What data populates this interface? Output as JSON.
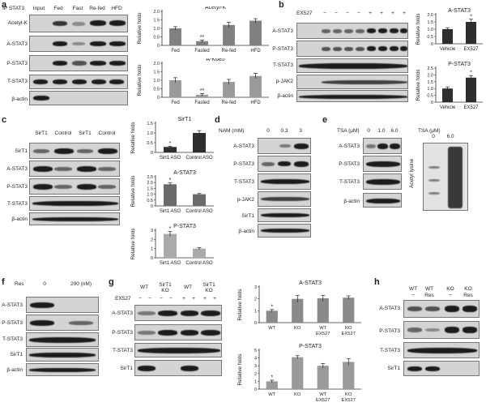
{
  "panels": {
    "a": {
      "label": "a",
      "blot_header": "IP STAT3",
      "lanes": [
        "Input",
        "Fed",
        "Fast",
        "Re-fed",
        "HFD"
      ],
      "rows": [
        "Acetyl-K",
        "A-STAT3",
        "P-STAT3",
        "T-STAT3",
        "β-actin"
      ]
    },
    "b": {
      "label": "b",
      "treatment": "EX527",
      "signs": [
        "−",
        "−",
        "−",
        "−",
        "+",
        "+",
        "+",
        "+"
      ],
      "rows": [
        "A-STAT3",
        "P-STAT3",
        "T-STAT3",
        "p-JAK2",
        "β-actin"
      ]
    },
    "c": {
      "label": "c",
      "lanes": [
        "SirT1",
        "Control",
        "SirT1",
        "Control"
      ],
      "rows": [
        "SirT1",
        "A-STAT3",
        "P-STAT3",
        "T-STAT3",
        "β-actin"
      ]
    },
    "d": {
      "label": "d",
      "header": "NAM (mM)",
      "lanes": [
        "0",
        "0.3",
        "3"
      ],
      "rows": [
        "A-STAT3",
        "P-STAT3",
        "T-STAT3",
        "p-JAK2",
        "SirT1",
        "β-actin"
      ]
    },
    "e": {
      "label": "e",
      "header": "TSA (μM)",
      "lanes": [
        "0",
        "1.0",
        "6.0"
      ],
      "rows": [
        "A-STAT3",
        "P-STAT3",
        "T-STAT3",
        "β-actin"
      ],
      "right_header": "TSA (μM)",
      "right_lanes": [
        "0",
        "6.0"
      ],
      "right_label": "Acetyl lysine"
    },
    "f": {
      "label": "f",
      "header": "Res",
      "lanes": [
        "0",
        "200 (nM)"
      ],
      "rows": [
        "A-STAT3",
        "P-STAT3",
        "T-STAT3",
        "SirT1",
        "β-actin"
      ]
    },
    "g": {
      "label": "g",
      "top_lanes": [
        "WT",
        "SirT1 KO",
        "WT",
        "SirT1 KO"
      ],
      "treatment": "EX527",
      "signs": [
        "−",
        "−",
        "−",
        "−",
        "+",
        "+",
        "+",
        "+"
      ],
      "rows": [
        "A-STAT3",
        "P-STAT3",
        "T-STAT3",
        "SirT1"
      ]
    },
    "h": {
      "label": "h",
      "top_lanes": [
        "WT",
        "WT",
        "KO",
        "KO"
      ],
      "sub_lanes": [
        "−",
        "Res",
        "−",
        "Res"
      ],
      "rows": [
        "A-STAT3",
        "P-STAT3",
        "T-STAT3",
        "SirT1"
      ]
    }
  },
  "chart_data": [
    {
      "id": "a1",
      "type": "bar",
      "title": "Acetyl-K",
      "ylabel": "Relative folds",
      "categories": [
        "Fed",
        "Fasted",
        "Re-fed",
        "HFD"
      ],
      "values": [
        1.0,
        0.25,
        1.2,
        1.45
      ],
      "errors": [
        0.1,
        0.06,
        0.15,
        0.12
      ],
      "annotations": [
        "",
        "**",
        "",
        ""
      ],
      "ylim": [
        0,
        2.0
      ],
      "yticks": [
        "0",
        "0.5",
        "1.0",
        "1.5",
        "2.0"
      ],
      "color": "#808080"
    },
    {
      "id": "a2",
      "type": "bar",
      "title": "A-K685",
      "ylabel": "Relative folds",
      "categories": [
        "Fed",
        "Fasted",
        "Re-fed",
        "HFD"
      ],
      "values": [
        1.0,
        0.15,
        0.9,
        1.25
      ],
      "errors": [
        0.15,
        0.07,
        0.15,
        0.15
      ],
      "annotations": [
        "",
        "**",
        "",
        ""
      ],
      "ylim": [
        0,
        2.0
      ],
      "yticks": [
        "0",
        "0.5",
        "1.0",
        "1.5",
        "2.0"
      ],
      "color": "#9a9a9a"
    },
    {
      "id": "b1",
      "type": "bar",
      "title": "A-STAT3",
      "ylabel": "Relative folds",
      "categories": [
        "Vehicle",
        "EX527"
      ],
      "values": [
        1.0,
        1.5
      ],
      "errors": [
        0.1,
        0.18
      ],
      "annotations": [
        "",
        "*"
      ],
      "ylim": [
        0,
        2.0
      ],
      "yticks": [
        "0",
        "0.5",
        "1.0",
        "1.5",
        "2.0"
      ],
      "color": "#2e2e2e"
    },
    {
      "id": "b2",
      "type": "bar",
      "title": "P-STAT3",
      "ylabel": "Relative folds",
      "categories": [
        "Vehicle",
        "EX527"
      ],
      "values": [
        1.0,
        1.8
      ],
      "errors": [
        0.12,
        0.15
      ],
      "annotations": [
        "",
        "*"
      ],
      "ylim": [
        0,
        2.5
      ],
      "yticks": [
        "0",
        "0.5",
        "1.0",
        "1.5",
        "2.0",
        "2.5"
      ],
      "color": "#2e2e2e"
    },
    {
      "id": "c1",
      "type": "bar",
      "title": "SirT1",
      "ylabel": "Relative folds",
      "categories": [
        "Sirt1 ASO",
        "Control ASO"
      ],
      "values": [
        0.28,
        1.0
      ],
      "errors": [
        0.04,
        0.12
      ],
      "annotations": [
        "*",
        ""
      ],
      "ylim": [
        0,
        1.5
      ],
      "yticks": [
        "0",
        "0.5",
        "1.0",
        "1.5"
      ],
      "color": "#2e2e2e"
    },
    {
      "id": "c2",
      "type": "bar",
      "title": "A-STAT3",
      "ylabel": "Relative folds",
      "categories": [
        "Sirt1 ASO",
        "Control ASO"
      ],
      "values": [
        1.85,
        1.0
      ],
      "errors": [
        0.12,
        0.06
      ],
      "annotations": [
        "*",
        ""
      ],
      "ylim": [
        0,
        2.5
      ],
      "yticks": [
        "0",
        "0.5",
        "1.0",
        "1.5",
        "2.0",
        "2.5"
      ],
      "color": "#6a6a6a"
    },
    {
      "id": "c3",
      "type": "bar",
      "title": "P-STAT3",
      "ylabel": "Relative folds",
      "categories": [
        "Sirt1 ASO",
        "Control ASO"
      ],
      "values": [
        2.6,
        1.0
      ],
      "errors": [
        0.25,
        0.1
      ],
      "annotations": [
        "*",
        ""
      ],
      "ylim": [
        0,
        3.0
      ],
      "yticks": [
        "0",
        "1",
        "2",
        "3"
      ],
      "color": "#aaaaaa"
    },
    {
      "id": "g1",
      "type": "bar",
      "title": "A-STAT3",
      "ylabel": "Relative folds",
      "categories": [
        "WT",
        "KO",
        "WT EX527",
        "KO EX527"
      ],
      "values": [
        1.0,
        2.0,
        2.05,
        2.1
      ],
      "errors": [
        0.1,
        0.3,
        0.25,
        0.15
      ],
      "annotations": [
        "*",
        "",
        "",
        ""
      ],
      "ylim": [
        0,
        3.0
      ],
      "yticks": [
        "0",
        "1",
        "2",
        "3"
      ],
      "color": "#8a8a8a"
    },
    {
      "id": "g2",
      "type": "bar",
      "title": "P-STAT3",
      "ylabel": "Relative folds",
      "categories": [
        "WT",
        "KO",
        "WT EX527",
        "KO EX527"
      ],
      "values": [
        1.0,
        4.1,
        3.0,
        3.5
      ],
      "errors": [
        0.15,
        0.2,
        0.3,
        0.4
      ],
      "annotations": [
        "*",
        "",
        "",
        ""
      ],
      "ylim": [
        0,
        5.0
      ],
      "yticks": [
        "0",
        "1",
        "2",
        "3",
        "4",
        "5"
      ],
      "color": "#9a9a9a"
    }
  ]
}
